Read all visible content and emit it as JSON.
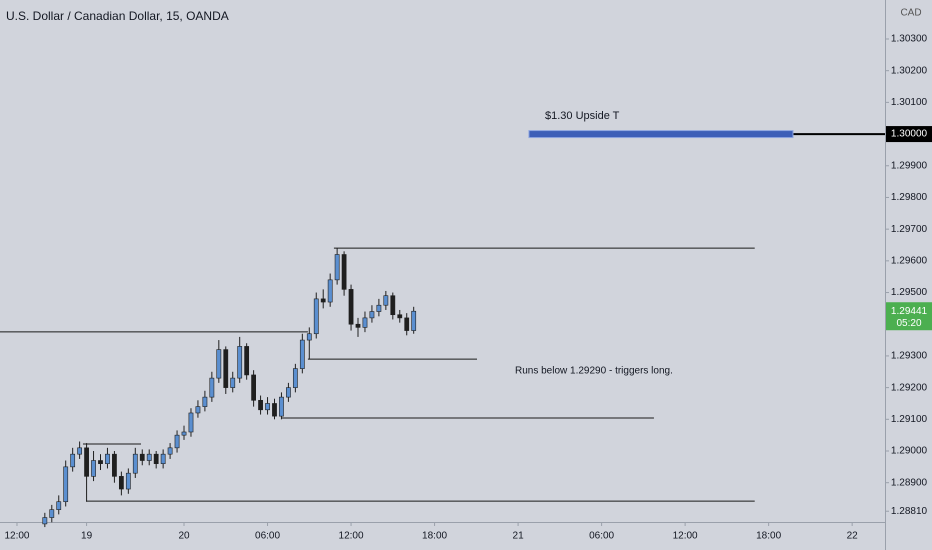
{
  "chart_data": {
    "type": "candlestick",
    "title": "U.S. Dollar / Canadian Dollar, 15, OANDA",
    "currency": "CAD",
    "up_color": "#5b8fd0",
    "down_color": "#1f1f1f",
    "x": [
      2,
      2.5,
      3,
      3.5,
      4,
      4.5,
      5,
      5.5,
      6,
      6.5,
      7,
      7.5,
      8,
      8.5,
      9,
      9.5,
      10,
      10.5,
      11,
      11.5,
      12,
      12.5,
      13,
      13.5,
      14,
      14.5,
      15,
      15.5,
      16,
      16.5,
      17,
      17.5,
      18,
      18.5,
      19,
      19.5,
      20,
      20.5,
      21,
      21.5,
      22,
      22.5,
      23,
      23.5,
      24,
      24.5,
      25,
      25.5,
      26,
      26.5,
      27,
      27.5,
      28,
      28.5
    ],
    "open": [
      1.2877,
      1.2879,
      1.28815,
      1.2884,
      1.2895,
      1.2899,
      1.2901,
      1.2892,
      1.2897,
      1.2896,
      1.2899,
      1.2892,
      1.2888,
      1.2893,
      1.2899,
      1.2897,
      1.2899,
      1.2896,
      1.2899,
      1.2901,
      1.2905,
      1.2906,
      1.2912,
      1.2914,
      1.2917,
      1.2923,
      1.2932,
      1.292,
      1.2923,
      1.2933,
      1.2924,
      1.2916,
      1.2913,
      1.2915,
      1.2911,
      1.2917,
      1.292,
      1.2926,
      1.2935,
      1.2937,
      1.2948,
      1.2947,
      1.2954,
      1.2962,
      1.2951,
      1.294,
      1.2939,
      1.2942,
      1.2944,
      1.2946,
      1.2949,
      1.2943,
      1.2942,
      1.2938
    ],
    "high": [
      1.28805,
      1.2883,
      1.2886,
      1.2897,
      1.2901,
      1.2903,
      1.29025,
      1.29,
      1.2899,
      1.2901,
      1.29,
      1.28935,
      1.28945,
      1.2901,
      1.29005,
      1.29005,
      1.29,
      1.29005,
      1.29025,
      1.29065,
      1.2908,
      1.29135,
      1.2916,
      1.2919,
      1.2925,
      1.2935,
      1.2933,
      1.2925,
      1.2936,
      1.2934,
      1.29255,
      1.29175,
      1.2917,
      1.29165,
      1.29185,
      1.29215,
      1.29275,
      1.2937,
      1.2939,
      1.295,
      1.2951,
      1.2956,
      1.2964,
      1.2963,
      1.29525,
      1.2942,
      1.2944,
      1.2946,
      1.2948,
      1.29505,
      1.295,
      1.29445,
      1.29435,
      1.29455
    ],
    "low": [
      1.2876,
      1.28775,
      1.288,
      1.28825,
      1.28935,
      1.28975,
      1.2884,
      1.28905,
      1.2894,
      1.28945,
      1.289,
      1.2886,
      1.28865,
      1.28915,
      1.28955,
      1.28955,
      1.28945,
      1.28945,
      1.28975,
      1.28995,
      1.29035,
      1.29045,
      1.29105,
      1.29125,
      1.29155,
      1.29215,
      1.2918,
      1.29185,
      1.29215,
      1.29225,
      1.2914,
      1.29115,
      1.29115,
      1.291,
      1.291,
      1.29155,
      1.29185,
      1.29245,
      1.2929,
      1.29355,
      1.2945,
      1.29455,
      1.29525,
      1.2949,
      1.2938,
      1.2936,
      1.29375,
      1.29405,
      1.29425,
      1.29445,
      1.29415,
      1.29405,
      1.29365,
      1.2937
    ],
    "close": [
      1.2879,
      1.28815,
      1.2884,
      1.2895,
      1.2899,
      1.2901,
      1.2892,
      1.2897,
      1.2896,
      1.2899,
      1.2892,
      1.2888,
      1.2893,
      1.2899,
      1.2897,
      1.2899,
      1.2896,
      1.2899,
      1.2901,
      1.2905,
      1.2906,
      1.2912,
      1.2914,
      1.2917,
      1.2923,
      1.2932,
      1.292,
      1.2923,
      1.2933,
      1.2924,
      1.2916,
      1.2913,
      1.2915,
      1.2911,
      1.2917,
      1.292,
      1.2926,
      1.2935,
      1.2937,
      1.2948,
      1.2947,
      1.2954,
      1.2962,
      1.2951,
      1.294,
      1.2939,
      1.2942,
      1.2944,
      1.2946,
      1.2949,
      1.2943,
      1.2942,
      1.2938,
      1.29441
    ],
    "xlim": [
      -1.22,
      62.36
    ],
    "xticks": [
      {
        "value": 0,
        "label": "12:00"
      },
      {
        "value": 5,
        "label": "19"
      },
      {
        "value": 12,
        "label": "20"
      },
      {
        "value": 18,
        "label": "06:00"
      },
      {
        "value": 24,
        "label": "12:00"
      },
      {
        "value": 30,
        "label": "18:00"
      },
      {
        "value": 36,
        "label": "21"
      },
      {
        "value": 42,
        "label": "06:00"
      },
      {
        "value": 48,
        "label": "12:00"
      },
      {
        "value": 54,
        "label": "18:00"
      },
      {
        "value": 60,
        "label": "22"
      }
    ],
    "ylim": [
      1.28776,
      1.30423
    ],
    "yticks": [
      {
        "value": 1.303,
        "label": "1.30300"
      },
      {
        "value": 1.302,
        "label": "1.30200"
      },
      {
        "value": 1.301,
        "label": "1.30100"
      },
      {
        "value": 1.299,
        "label": "1.29900"
      },
      {
        "value": 1.298,
        "label": "1.29800"
      },
      {
        "value": 1.297,
        "label": "1.29700"
      },
      {
        "value": 1.296,
        "label": "1.29600"
      },
      {
        "value": 1.295,
        "label": "1.29500"
      },
      {
        "value": 1.293,
        "label": "1.29300"
      },
      {
        "value": 1.292,
        "label": "1.29200"
      },
      {
        "value": 1.291,
        "label": "1.29100"
      },
      {
        "value": 1.29,
        "label": "1.29000"
      },
      {
        "value": 1.289,
        "label": "1.28900"
      },
      {
        "value": 1.2881,
        "label": "1.28810"
      }
    ],
    "price_label": {
      "value": 1.3,
      "label": "1.30000"
    },
    "last_price": {
      "value": 1.29441,
      "label": "1.29441",
      "countdown": "05:20",
      "color": "#4caf50"
    },
    "levels": [
      {
        "price": 1.29376,
        "from": -1.22,
        "to": 20.9
      },
      {
        "price": 1.2964,
        "from": 22.77,
        "to": 53.0
      },
      {
        "price": 1.2929,
        "from": 20.9,
        "to": 33.05
      },
      {
        "price": 1.29104,
        "from": 19.04,
        "to": 45.76
      },
      {
        "price": 1.28842,
        "from": 4.96,
        "to": 53.0
      },
      {
        "price": 1.29022,
        "from": 4.74,
        "to": 8.91
      }
    ],
    "target": {
      "price": 1.3,
      "from": 36.78,
      "to": 55.75,
      "color": "#3d5fb8"
    },
    "annotations": [
      "$1.30 Upside T",
      "Runs below 1.29290 - triggers long."
    ]
  }
}
